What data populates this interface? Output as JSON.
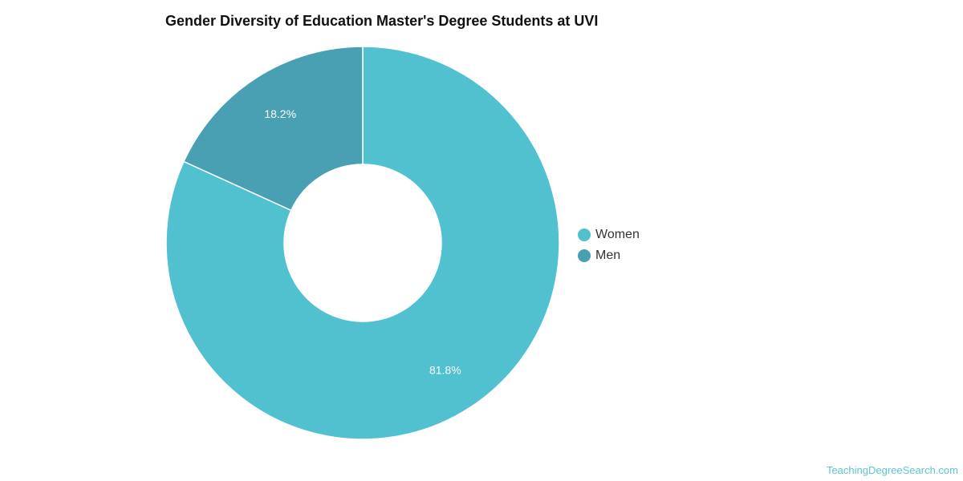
{
  "chart_data": {
    "type": "pie",
    "title": "Gender Diversity of Education Master's Degree Students at UVI",
    "categories": [
      "Women",
      "Men"
    ],
    "values": [
      81.8,
      18.2
    ],
    "value_labels": [
      "81.8%",
      "18.2%"
    ],
    "colors": [
      "#52c1cf",
      "#4aa0b3"
    ],
    "legend_position": "right"
  },
  "watermark": "TeachingDegreeSearch.com"
}
